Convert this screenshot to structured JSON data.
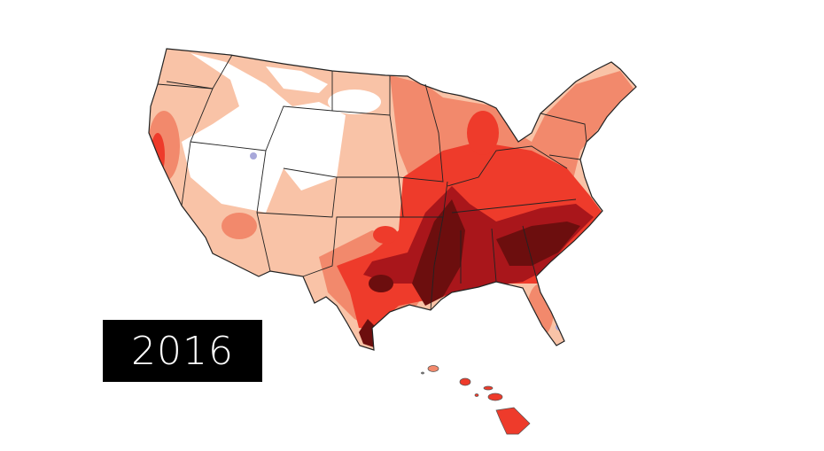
{
  "year_label": "2016",
  "colors": {
    "none": "#ffffff",
    "low": "#f9c3a7",
    "moderate": "#f2896c",
    "high": "#ee3b2b",
    "very_high": "#a9161b",
    "extreme": "#6c0e0e",
    "below": "#a8a8da",
    "border": "#222222"
  }
}
